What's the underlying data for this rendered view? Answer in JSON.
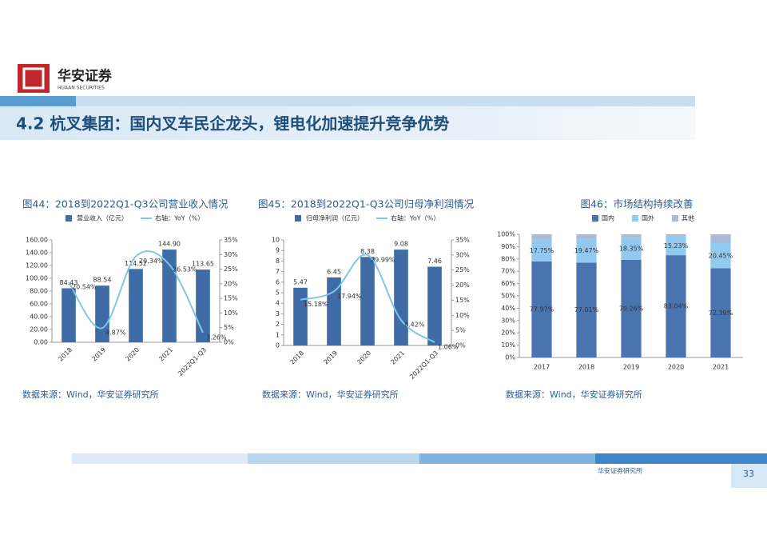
{
  "header": {
    "logo_text": "华安证券",
    "logo_subtext": "HUAAN SECURITIES",
    "section_title": "4.2 杭叉集团：国内叉车民企龙头，锂电化加速提升竞争优势"
  },
  "footer": {
    "org": "华安证券研究所",
    "page": "33"
  },
  "chart_data": [
    {
      "type": "combo",
      "title": "图44：2018到2022Q1-Q3公司营业收入情况",
      "source": "数据来源：Wind，华安证券研究所",
      "categories": [
        "2018",
        "2019",
        "2020",
        "2021",
        "2022Q1-Q3"
      ],
      "series": [
        {
          "name": "营业收入（亿元）",
          "type": "bar",
          "color": "#3f6ba6",
          "values": [
            84.43,
            88.54,
            114.52,
            144.9,
            113.65
          ],
          "value_labels": [
            "84.43",
            "88.54",
            "114.52",
            "144.90",
            "113.65"
          ]
        },
        {
          "name": "右轴：YoY（%）",
          "type": "line",
          "axis": "y2",
          "color": "#7ec8e6",
          "values": [
            20.54,
            4.87,
            29.34,
            26.53,
            3.26
          ],
          "value_labels": [
            "20.54%",
            "4.87%",
            "29.34%",
            "26.53%",
            "3.26%"
          ]
        }
      ],
      "ylim": [
        0,
        160
      ],
      "yticks": [
        {
          "value": 0,
          "label": "0.00"
        },
        {
          "value": 20,
          "label": "20.00"
        },
        {
          "value": 40,
          "label": "40.00"
        },
        {
          "value": 60,
          "label": "60.00"
        },
        {
          "value": 80,
          "label": "80.00"
        },
        {
          "value": 100,
          "label": "100.00"
        },
        {
          "value": 120,
          "label": "120.00"
        },
        {
          "value": 140,
          "label": "140.00"
        },
        {
          "value": 160,
          "label": "160.00"
        }
      ],
      "y2lim": [
        0,
        35
      ],
      "y2ticks": [
        {
          "value": 0,
          "label": "0%"
        },
        {
          "value": 5,
          "label": "5%"
        },
        {
          "value": 10,
          "label": "10%"
        },
        {
          "value": 15,
          "label": "15%"
        },
        {
          "value": 20,
          "label": "20%"
        },
        {
          "value": 25,
          "label": "25%"
        },
        {
          "value": 30,
          "label": "30%"
        },
        {
          "value": 35,
          "label": "35%"
        }
      ]
    },
    {
      "type": "combo",
      "title": "图45：2018到2022Q1-Q3公司归母净利润情况",
      "source": "数据来源：Wind，华安证券研究所",
      "categories": [
        "2018",
        "2019",
        "2020",
        "2021",
        "2022Q1-Q3"
      ],
      "series": [
        {
          "name": "归母净利润（亿元）",
          "type": "bar",
          "color": "#3f6ba6",
          "values": [
            5.47,
            6.45,
            8.38,
            9.08,
            7.46
          ]
        },
        {
          "name": "右轴：YoY（%）",
          "type": "line",
          "axis": "y2",
          "color": "#7ec8e6",
          "values": [
            15.18,
            17.94,
            29.99,
            8.42,
            1.06
          ],
          "value_labels": [
            "15.18%",
            "17.94%",
            "29.99%",
            "8.42%",
            "1.06%"
          ]
        }
      ],
      "ylim": [
        0,
        10
      ],
      "yticks": [
        0,
        1,
        2,
        3,
        4,
        5,
        6,
        7,
        8,
        9,
        10
      ],
      "y2lim": [
        0,
        35
      ],
      "y2ticks": [
        {
          "value": 0,
          "label": "0%"
        },
        {
          "value": 5,
          "label": "5%"
        },
        {
          "value": 10,
          "label": "10%"
        },
        {
          "value": 15,
          "label": "15%"
        },
        {
          "value": 20,
          "label": "20%"
        },
        {
          "value": 25,
          "label": "25%"
        },
        {
          "value": 30,
          "label": "30%"
        },
        {
          "value": 35,
          "label": "35%"
        }
      ]
    },
    {
      "type": "stacked_bar",
      "title": "图46：市场结构持续改善",
      "source": "数据来源：Wind，华安证券研究所",
      "categories": [
        "2017",
        "2018",
        "2019",
        "2020",
        "2021"
      ],
      "series": [
        {
          "name": "国内",
          "color": "#4a74b0",
          "values": [
            77.97,
            77.01,
            79.26,
            83.04,
            72.39
          ],
          "value_labels": [
            "77.97%",
            "77.01%",
            "79.26%",
            "83.04%",
            "72.39%"
          ]
        },
        {
          "name": "国外",
          "color": "#92c9ee",
          "values": [
            17.75,
            19.47,
            18.35,
            15.23,
            20.45
          ],
          "value_labels": [
            "17.75%",
            "19.47%",
            "18.35%",
            "15.23%",
            "20.45%"
          ]
        },
        {
          "name": "其他",
          "color": "#a9bbd8",
          "values": [
            4.28,
            3.52,
            2.39,
            1.73,
            7.16
          ]
        }
      ],
      "ylim": [
        0,
        100
      ],
      "yticks": [
        {
          "value": 0,
          "label": "0%"
        },
        {
          "value": 10,
          "label": "10%"
        },
        {
          "value": 20,
          "label": "20%"
        },
        {
          "value": 30,
          "label": "30%"
        },
        {
          "value": 40,
          "label": "40%"
        },
        {
          "value": 50,
          "label": "50%"
        },
        {
          "value": 60,
          "label": "60%"
        },
        {
          "value": 70,
          "label": "70%"
        },
        {
          "value": 80,
          "label": "80%"
        },
        {
          "value": 90,
          "label": "90%"
        },
        {
          "value": 100,
          "label": "100%"
        }
      ]
    }
  ]
}
